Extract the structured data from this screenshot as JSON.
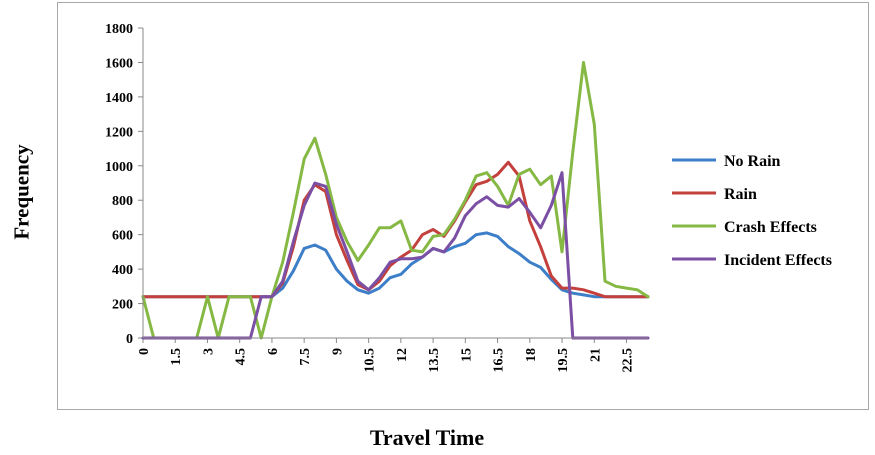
{
  "chart_data": {
    "type": "line",
    "xlabel": "Travel Time",
    "ylabel": "Frequency",
    "ylim": [
      0,
      1800
    ],
    "yticks": [
      0,
      200,
      400,
      600,
      800,
      1000,
      1200,
      1400,
      1600,
      1800
    ],
    "xticks": [
      "0",
      "1.5",
      "3",
      "4.5",
      "6",
      "7.5",
      "9",
      "10.5",
      "12",
      "13.5",
      "15",
      "16.5",
      "18",
      "19.5",
      "21",
      "22.5"
    ],
    "x": [
      0,
      0.5,
      1,
      1.5,
      2,
      2.5,
      3,
      3.5,
      4,
      4.5,
      5,
      5.5,
      6,
      6.5,
      7,
      7.5,
      8,
      8.5,
      9,
      9.5,
      10,
      10.5,
      11,
      11.5,
      12,
      12.5,
      13,
      13.5,
      14,
      14.5,
      15,
      15.5,
      16,
      16.5,
      17,
      17.5,
      18,
      18.5,
      19,
      19.5,
      20,
      20.5,
      21,
      21.5,
      22,
      22.5,
      23,
      23.5
    ],
    "grid": false,
    "legend": "right",
    "series": [
      {
        "name": "No Rain",
        "color": "#3d7ec9",
        "values": [
          240,
          240,
          240,
          240,
          240,
          240,
          240,
          240,
          240,
          240,
          240,
          240,
          240,
          290,
          390,
          520,
          540,
          510,
          400,
          330,
          280,
          260,
          290,
          350,
          370,
          430,
          470,
          520,
          500,
          530,
          550,
          600,
          610,
          590,
          530,
          490,
          440,
          410,
          340,
          280,
          260,
          250,
          240,
          240,
          240,
          240,
          240,
          240
        ]
      },
      {
        "name": "Rain",
        "color": "#c3403c",
        "values": [
          240,
          240,
          240,
          240,
          240,
          240,
          240,
          240,
          240,
          240,
          240,
          240,
          240,
          320,
          530,
          800,
          890,
          850,
          600,
          450,
          310,
          280,
          330,
          420,
          470,
          510,
          600,
          630,
          590,
          680,
          790,
          890,
          910,
          950,
          1020,
          940,
          680,
          530,
          360,
          290,
          290,
          280,
          260,
          240,
          240,
          240,
          240,
          240
        ]
      },
      {
        "name": "Crash Effects",
        "color": "#86b844",
        "values": [
          240,
          0,
          0,
          0,
          0,
          0,
          240,
          0,
          240,
          240,
          240,
          0,
          240,
          440,
          730,
          1040,
          1160,
          950,
          700,
          560,
          450,
          540,
          640,
          640,
          680,
          510,
          500,
          590,
          600,
          690,
          800,
          940,
          960,
          880,
          770,
          950,
          980,
          890,
          940,
          500,
          1080,
          1600,
          1240,
          330,
          300,
          290,
          280,
          240
        ]
      },
      {
        "name": "Incident Effects",
        "color": "#7b4fa3",
        "values": [
          0,
          0,
          0,
          0,
          0,
          0,
          0,
          0,
          0,
          0,
          0,
          240,
          240,
          330,
          560,
          770,
          900,
          880,
          660,
          500,
          330,
          280,
          350,
          440,
          460,
          460,
          470,
          520,
          500,
          580,
          710,
          780,
          820,
          770,
          760,
          810,
          730,
          640,
          770,
          960,
          0,
          0,
          0,
          0,
          0,
          0,
          0,
          0
        ]
      }
    ]
  }
}
